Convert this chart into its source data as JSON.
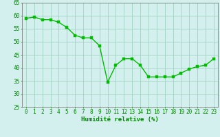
{
  "x": [
    0,
    1,
    2,
    3,
    4,
    5,
    6,
    7,
    8,
    9,
    10,
    11,
    12,
    13,
    14,
    15,
    16,
    17,
    18,
    19,
    20,
    21,
    22,
    23
  ],
  "y": [
    59.0,
    59.5,
    58.5,
    58.5,
    57.5,
    55.5,
    52.5,
    51.5,
    51.5,
    48.5,
    34.5,
    41.0,
    43.5,
    43.5,
    41.0,
    36.5,
    36.5,
    36.5,
    36.5,
    38.0,
    39.5,
    40.5,
    41.0,
    43.5
  ],
  "line_color": "#00bb00",
  "marker_color": "#00bb00",
  "bg_color": "#d4f0ee",
  "grid_color": "#99ccbb",
  "xlabel": "Humidité relative (%)",
  "xlabel_color": "#008800",
  "tick_color": "#008800",
  "axis_color": "#666666",
  "ylim": [
    25,
    65
  ],
  "xlim": [
    -0.5,
    23.5
  ],
  "yticks": [
    25,
    30,
    35,
    40,
    45,
    50,
    55,
    60,
    65
  ],
  "xticks": [
    0,
    1,
    2,
    3,
    4,
    5,
    6,
    7,
    8,
    9,
    10,
    11,
    12,
    13,
    14,
    15,
    16,
    17,
    18,
    19,
    20,
    21,
    22,
    23
  ],
  "xtick_labels": [
    "0",
    "1",
    "2",
    "3",
    "4",
    "5",
    "6",
    "7",
    "8",
    "9",
    "10",
    "11",
    "12",
    "13",
    "14",
    "15",
    "16",
    "17",
    "18",
    "19",
    "20",
    "21",
    "22",
    "23"
  ],
  "line_width": 1.0,
  "marker_size": 2.5,
  "tick_fontsize": 5.5,
  "xlabel_fontsize": 6.5
}
